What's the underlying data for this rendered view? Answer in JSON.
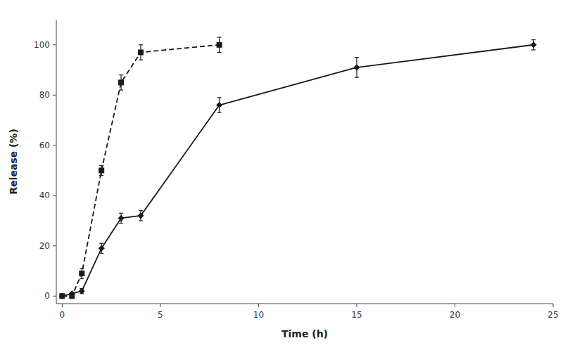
{
  "chart_data": {
    "type": "line",
    "xlabel": "Time (h)",
    "ylabel": "Release (%)",
    "xlim": [
      -0.3,
      25
    ],
    "ylim": [
      -3,
      110
    ],
    "xticks": [
      0,
      5,
      10,
      15,
      20,
      25
    ],
    "yticks": [
      0,
      20,
      40,
      60,
      80,
      100
    ],
    "grid": false,
    "series": [
      {
        "color": "#1a1a1a",
        "marker": "diamond",
        "line_style": "solid",
        "x": [
          0,
          0.5,
          1,
          2,
          3,
          4,
          8,
          15,
          24
        ],
        "values": [
          0,
          1,
          2,
          19,
          31,
          32,
          76,
          91,
          100
        ],
        "errors": [
          0.5,
          0.5,
          1,
          2,
          2,
          2,
          3,
          4,
          2
        ]
      },
      {
        "color": "#1a1a1a",
        "marker": "square",
        "line_style": "dashed",
        "x": [
          0,
          0.5,
          1,
          2,
          3,
          4,
          8
        ],
        "values": [
          0,
          0,
          9,
          50,
          85,
          97,
          100
        ],
        "errors": [
          0.5,
          0.5,
          2,
          2,
          3,
          3,
          3
        ]
      }
    ]
  }
}
